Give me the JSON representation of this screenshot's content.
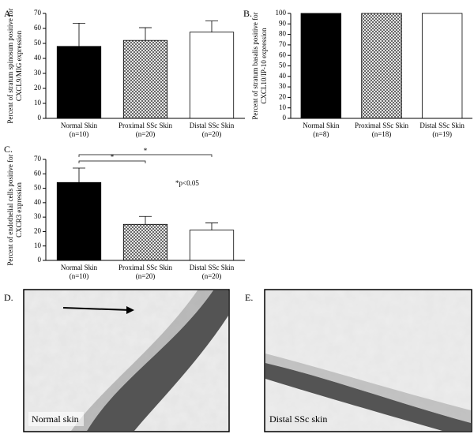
{
  "chart_data": [
    {
      "type": "bar",
      "panel_label": "A.",
      "ylabel": [
        "Percent of stratum spinosum positive for",
        "CXCL9/MIG expression"
      ],
      "categories": [
        "Normal Skin",
        "Proximal SSc Skin",
        "Distal SSc Skin"
      ],
      "n_labels": [
        "(n=10)",
        "(n=20)",
        "(n=20)"
      ],
      "values": [
        48,
        52,
        57.5
      ],
      "errors": [
        15.5,
        8.5,
        7.5
      ],
      "bar_styles": [
        "solid",
        "crosshatch",
        "open"
      ],
      "color": "#000000",
      "ylim": [
        0,
        70
      ],
      "yticks": [
        0,
        10,
        20,
        30,
        40,
        50,
        60,
        70
      ]
    },
    {
      "type": "bar",
      "panel_label": "B.",
      "ylabel": [
        "Percent of stratum basalis positive for",
        "CXCL10/IP-10 expression"
      ],
      "categories": [
        "Normal Skin",
        "Proximal SSc Skin",
        "Distal SSc Skin"
      ],
      "n_labels": [
        "(n=8)",
        "(n=18)",
        "(n=19)"
      ],
      "values": [
        100,
        100,
        100
      ],
      "bar_styles": [
        "solid",
        "crosshatch",
        "open"
      ],
      "color": "#000000",
      "ylim": [
        0,
        100
      ],
      "yticks": [
        0,
        10,
        20,
        30,
        40,
        50,
        60,
        70,
        80,
        90,
        100
      ]
    },
    {
      "type": "bar",
      "panel_label": "C.",
      "ylabel": [
        "Percent of endothelial cells positive for",
        "CXCR3 expression"
      ],
      "categories": [
        "Normal Skin",
        "Proximal SSc Skin",
        "Distal SSc Skin"
      ],
      "n_labels": [
        "(n=10)",
        "(n=20)",
        "(n=20)"
      ],
      "values": [
        54,
        25,
        21
      ],
      "errors": [
        10,
        5.5,
        5
      ],
      "bar_styles": [
        "solid",
        "crosshatch",
        "open"
      ],
      "color": "#000000",
      "ylim": [
        0,
        70
      ],
      "yticks": [
        0,
        10,
        20,
        30,
        40,
        50,
        60,
        70
      ],
      "brackets": [
        {
          "from": 0,
          "to": 1,
          "label": "*"
        },
        {
          "from": 0,
          "to": 2,
          "label": "*"
        }
      ],
      "annotation": "*p<0.05"
    }
  ],
  "images": [
    {
      "panel_label": "D.",
      "caption": "Normal skin"
    },
    {
      "panel_label": "E.",
      "caption": "Distal SSc skin"
    }
  ]
}
